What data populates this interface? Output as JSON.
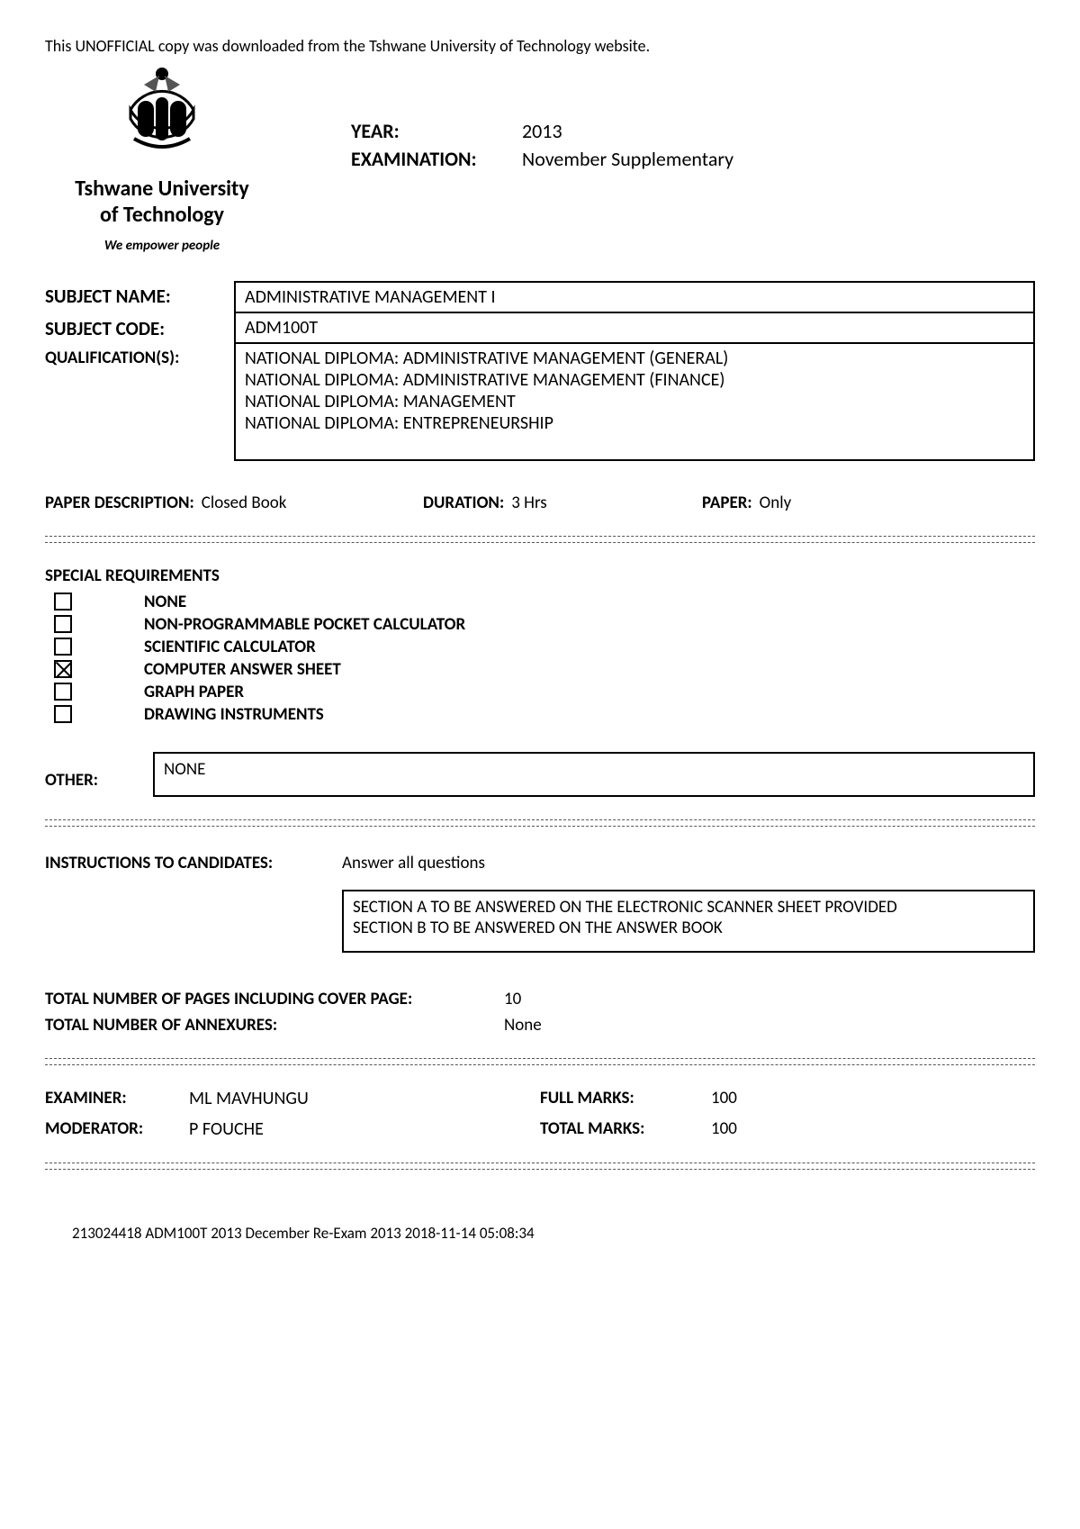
{
  "unofficial": "This UNOFFICIAL copy was downloaded from the Tshwane University of Technology website.",
  "university": {
    "name_line1": "Tshwane University",
    "name_line2": "of Technology",
    "tagline": "We empower people"
  },
  "header": {
    "year_label": "YEAR:",
    "year_value": "2013",
    "exam_label": "EXAMINATION:",
    "exam_value": "November Supplementary"
  },
  "subject": {
    "name_label": "SUBJECT NAME:",
    "name_value": "ADMINISTRATIVE MANAGEMENT I",
    "code_label": "SUBJECT CODE:",
    "code_value": "ADM100T",
    "qual_label": "QUALIFICATION(S):",
    "qual_lines": [
      "NATIONAL DIPLOMA: ADMINISTRATIVE MANAGEMENT (GENERAL)",
      "NATIONAL DIPLOMA: ADMINISTRATIVE MANAGEMENT (FINANCE)",
      "NATIONAL DIPLOMA: MANAGEMENT",
      "NATIONAL DIPLOMA: ENTREPRENEURSHIP"
    ]
  },
  "paper": {
    "desc_label": "PAPER DESCRIPTION:",
    "desc_value": "Closed Book",
    "dur_label": "DURATION:",
    "dur_value": "3 Hrs",
    "paper_label": "PAPER:",
    "paper_value": "Only"
  },
  "requirements": {
    "title": "SPECIAL REQUIREMENTS",
    "items": [
      {
        "label": "NONE",
        "checked": false
      },
      {
        "label": "NON-PROGRAMMABLE POCKET CALCULATOR",
        "checked": false
      },
      {
        "label": "SCIENTIFIC CALCULATOR",
        "checked": false
      },
      {
        "label": "COMPUTER ANSWER SHEET",
        "checked": true
      },
      {
        "label": "GRAPH PAPER",
        "checked": false
      },
      {
        "label": "DRAWING INSTRUMENTS",
        "checked": false
      }
    ],
    "other_label": "OTHER:",
    "other_value": "NONE"
  },
  "instructions": {
    "label": "INSTRUCTIONS TO CANDIDATES:",
    "line1": "Answer all questions",
    "box_line1": "SECTION A TO BE ANSWERED ON THE ELECTRONIC SCANNER SHEET PROVIDED",
    "box_line2": "SECTION B TO BE ANSWERED ON THE ANSWER BOOK"
  },
  "totals": {
    "pages_label": "TOTAL NUMBER OF PAGES INCLUDING COVER PAGE:",
    "pages_value": "10",
    "annex_label": "TOTAL NUMBER OF ANNEXURES:",
    "annex_value": "None"
  },
  "signoff": {
    "examiner_label": "EXAMINER:",
    "examiner_value": "ML MAVHUNGU",
    "moderator_label": "MODERATOR:",
    "moderator_value": "P FOUCHE",
    "full_marks_label": "FULL MARKS:",
    "full_marks_value": "100",
    "total_marks_label": "TOTAL MARKS:",
    "total_marks_value": "100"
  },
  "footer": "213024418   ADM100T   2013   December Re-Exam 2013   2018-11-14 05:08:34"
}
